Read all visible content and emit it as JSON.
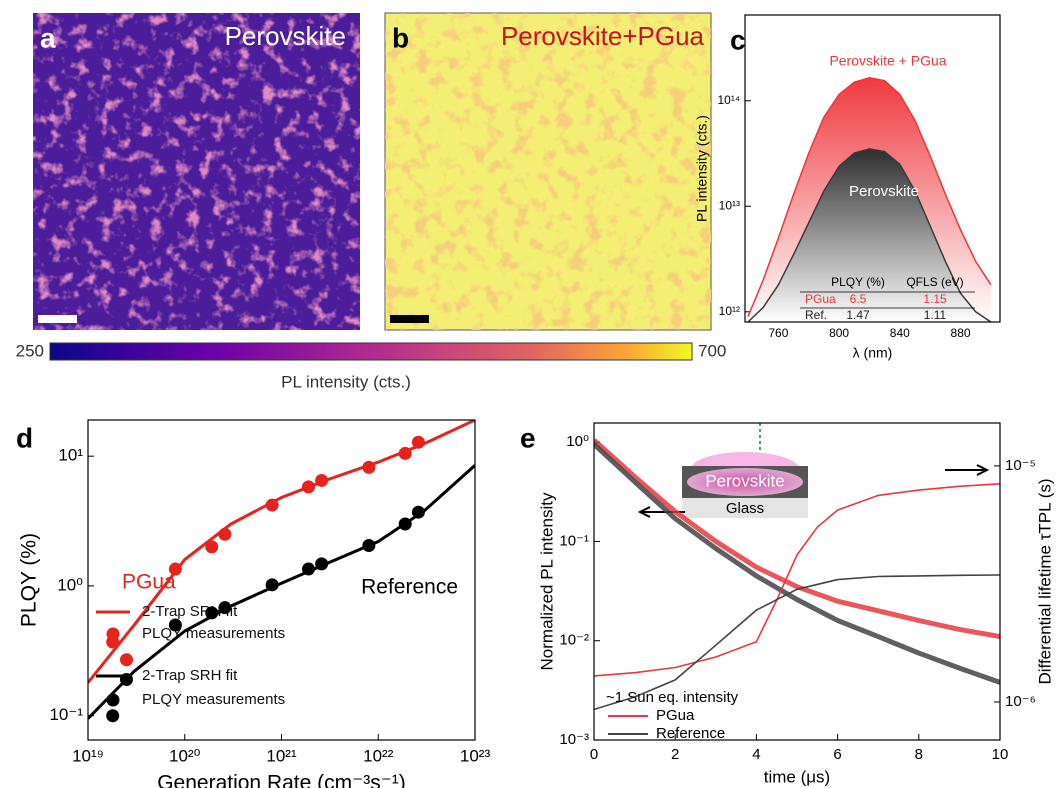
{
  "images": {
    "a": {
      "letter": "a",
      "title": "Perovskite"
    },
    "b": {
      "letter": "b",
      "title": "Perovskite+PGua"
    },
    "colorbar": {
      "label": "PL intensity (cts.)",
      "lim": [
        250,
        700
      ],
      "ticks": [
        250,
        700
      ]
    }
  },
  "chart_data": [
    {
      "type": "area",
      "letter": "c",
      "xlabel": "λ (nm)",
      "ylabel": "PL intensity (cts.)",
      "xlim": [
        738,
        906
      ],
      "xticks": [
        760,
        800,
        840,
        880
      ],
      "ylog": true,
      "ylim": [
        800000000000.0,
        650000000000000.0
      ],
      "yticks": [
        {
          "value": 1000000000000.0,
          "label": "10¹²"
        },
        {
          "value": 10000000000000.0,
          "label": "10¹³"
        },
        {
          "value": 100000000000000.0,
          "label": "10¹⁴"
        }
      ],
      "x": [
        740,
        750,
        760,
        770,
        780,
        790,
        800,
        810,
        820,
        830,
        840,
        850,
        860,
        870,
        880,
        890,
        900
      ],
      "series": [
        {
          "name": "Perovskite + PGua",
          "color": "#e8383d",
          "values": [
            900000000000.0,
            2000000000000.0,
            5000000000000.0,
            13000000000000.0,
            32000000000000.0,
            70000000000000.0,
            115000000000000.0,
            150000000000000.0,
            165000000000000.0,
            155000000000000.0,
            115000000000000.0,
            65000000000000.0,
            30000000000000.0,
            13000000000000.0,
            6000000000000.0,
            3000000000000.0,
            1800000000000.0
          ]
        },
        {
          "name": "Perovskite",
          "color": "#3a3a3a",
          "values": [
            800000000000.0,
            1100000000000.0,
            1800000000000.0,
            3500000000000.0,
            7000000000000.0,
            14000000000000.0,
            24000000000000.0,
            32000000000000.0,
            35000000000000.0,
            33000000000000.0,
            25000000000000.0,
            14000000000000.0,
            6500000000000.0,
            3000000000000.0,
            1500000000000.0,
            1000000000000.0,
            800000000000.0
          ]
        }
      ],
      "table": {
        "header": [
          "PLQY (%)",
          "QFLS (eV)"
        ],
        "rows": [
          [
            "PGua",
            "6.5",
            "1.15"
          ],
          [
            "Ref.",
            "1.47",
            "1.11"
          ]
        ]
      }
    },
    {
      "type": "scatter",
      "letter": "d",
      "xlabel": "Generation Rate (cm⁻³s⁻¹)",
      "ylabel": "PLQY (%)",
      "xlog": true,
      "xlim": [
        1e+19,
        1e+23
      ],
      "xticks": [
        {
          "value": 1e+19,
          "label": "10¹⁹"
        },
        {
          "value": 1e+20,
          "label": "10²⁰"
        },
        {
          "value": 1e+21,
          "label": "10²¹"
        },
        {
          "value": 1e+22,
          "label": "10²²"
        },
        {
          "value": 1e+23,
          "label": "10²³"
        }
      ],
      "ylog": true,
      "ylim": [
        0.065,
        19
      ],
      "yticks": [
        {
          "value": 0.1,
          "label": "10⁻¹"
        },
        {
          "value": 1,
          "label": "10⁰"
        },
        {
          "value": 10,
          "label": "10¹"
        }
      ],
      "annotations": [
        "PGua",
        "Reference"
      ],
      "series": [
        {
          "name": "2-Trap SRH fit",
          "color": "#e8221c",
          "style": "line",
          "x": [
            1e+19,
            3e+19,
            1e+20,
            3e+20,
            1e+21,
            3e+21,
            1e+22,
            3e+22,
            1e+23
          ],
          "values": [
            0.18,
            0.5,
            1.6,
            3.0,
            4.8,
            6.6,
            9.0,
            12.5,
            19
          ]
        },
        {
          "name": "PLQY measurements",
          "color": "#e8221c",
          "style": "marker",
          "x": [
            1.8e+19,
            2.5e+19,
            8e+19,
            1.9e+20,
            2.6e+20,
            8e+20,
            1.9e+21,
            2.6e+21,
            8e+21,
            1.9e+22,
            2.6e+22
          ],
          "values": [
            0.37,
            0.27,
            1.35,
            2.0,
            2.5,
            4.2,
            5.8,
            6.5,
            8.2,
            10.5,
            12.8
          ]
        },
        {
          "name": "2-Trap SRH fit",
          "color": "#000000",
          "style": "line",
          "x": [
            1e+19,
            3e+19,
            1e+20,
            3e+20,
            1e+21,
            3e+21,
            1e+22,
            3e+22,
            1e+23
          ],
          "values": [
            0.095,
            0.22,
            0.45,
            0.7,
            1.05,
            1.5,
            2.2,
            3.8,
            8.5
          ]
        },
        {
          "name": "PLQY measurements",
          "color": "#000000",
          "style": "marker",
          "x": [
            1.8e+19,
            2.5e+19,
            8e+19,
            1.9e+20,
            2.6e+20,
            8e+20,
            1.9e+21,
            2.6e+21,
            8e+21,
            1.9e+22,
            2.6e+22
          ],
          "values": [
            0.1,
            0.19,
            0.5,
            0.62,
            0.68,
            1.02,
            1.35,
            1.48,
            2.05,
            3.0,
            3.7
          ]
        }
      ]
    },
    {
      "type": "line",
      "letter": "e",
      "xlabel": "time (μs)",
      "ylabel": "Normalized PL intensity",
      "y2label": "Differential lifetime τTPL (s)",
      "xlim": [
        0,
        10
      ],
      "xticks": [
        0,
        2,
        4,
        6,
        8,
        10
      ],
      "ylog": true,
      "ylim": [
        0.001,
        1.56
      ],
      "yticks": [
        {
          "value": 0.001,
          "label": "10⁻³"
        },
        {
          "value": 0.01,
          "label": "10⁻²"
        },
        {
          "value": 0.1,
          "label": "10⁻¹"
        },
        {
          "value": 1,
          "label": "10⁰"
        }
      ],
      "y2lim": [
        6.9e-07,
        1.52e-05
      ],
      "y2ticks": [
        {
          "value": 1e-06,
          "label": "10⁻⁶"
        },
        {
          "value": 1e-05,
          "label": "10⁻⁵"
        }
      ],
      "annotations": [
        "~1 Sun eq. intensity",
        "Perovskite",
        "Glass"
      ],
      "series": [
        {
          "name": "PGua",
          "color": "#e8383d",
          "x": [
            0,
            1,
            2,
            3,
            4,
            5,
            6,
            7,
            8,
            9,
            10
          ],
          "values": [
            1.05,
            0.45,
            0.2,
            0.1,
            0.055,
            0.035,
            0.025,
            0.02,
            0.016,
            0.013,
            0.011
          ]
        },
        {
          "name": "Reference",
          "color": "#444444",
          "x": [
            0,
            1,
            2,
            3,
            4,
            5,
            6,
            7,
            8,
            9,
            10
          ],
          "values": [
            0.95,
            0.4,
            0.17,
            0.085,
            0.045,
            0.026,
            0.016,
            0.011,
            0.0075,
            0.0053,
            0.0038
          ]
        },
        {
          "color": "#e8383d",
          "axis": "y2",
          "x": [
            0,
            1,
            2,
            3,
            4,
            4.5,
            5,
            5.5,
            6,
            7,
            8,
            9,
            10
          ],
          "values": [
            1.29e-06,
            1.33e-06,
            1.4e-06,
            1.55e-06,
            1.8e-06,
            2.7e-06,
            4.2e-06,
            5.5e-06,
            6.5e-06,
            7.5e-06,
            7.9e-06,
            8.2e-06,
            8.4e-06
          ]
        },
        {
          "color": "#444444",
          "axis": "y2",
          "x": [
            0,
            1,
            2,
            3,
            4,
            5,
            6,
            7,
            8,
            9,
            10
          ],
          "values": [
            9.3e-07,
            1.05e-06,
            1.24e-06,
            1.74e-06,
            2.45e-06,
            3e-06,
            3.3e-06,
            3.4e-06,
            3.42e-06,
            3.44e-06,
            3.45e-06
          ]
        }
      ]
    }
  ]
}
